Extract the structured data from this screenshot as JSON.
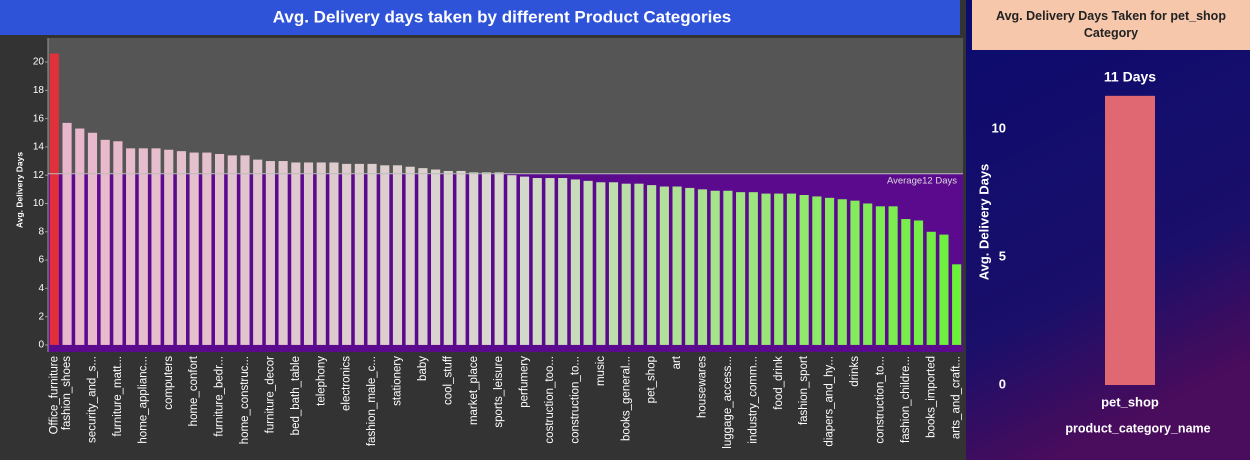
{
  "chart_data": [
    {
      "type": "bar",
      "title": "Avg. Delivery days taken by different Product Categories",
      "ylabel": "Avg. Delivery Days",
      "categories": [
        "Office_furniture",
        "fashion_shoes",
        null,
        "security_and_s...",
        null,
        "furniture_matt...",
        null,
        "home_applianc...",
        null,
        "computers",
        null,
        "home_confort",
        null,
        "furniture_bedr...",
        null,
        "home_construc...",
        null,
        "furniture_decor",
        null,
        "bed_bath_table",
        null,
        "telephony",
        null,
        "electronics",
        null,
        "fashion_male_c...",
        null,
        "stationery",
        null,
        "baby",
        null,
        "cool_stuff",
        null,
        "market_place",
        null,
        "sports_leisure",
        null,
        "perfumery",
        null,
        "costruction_too...",
        null,
        "construction_to...",
        null,
        "music",
        null,
        "books_general...",
        null,
        "pet_shop",
        null,
        "art",
        null,
        "housewares",
        null,
        "luggage_access...",
        null,
        "industry_comm...",
        null,
        "food_drink",
        null,
        "fashion_sport",
        null,
        "diapers_and_hy...",
        null,
        "drinks",
        null,
        "construction_to...",
        null,
        "fashion_childre...",
        null,
        "books_imported",
        null,
        "arts_and_craft..."
      ],
      "values": [
        20.6,
        15.7,
        15.3,
        15.0,
        14.5,
        14.4,
        13.9,
        13.9,
        13.9,
        13.8,
        13.7,
        13.6,
        13.6,
        13.5,
        13.4,
        13.4,
        13.1,
        13.0,
        13.0,
        12.9,
        12.9,
        12.9,
        12.9,
        12.8,
        12.8,
        12.8,
        12.7,
        12.7,
        12.6,
        12.5,
        12.4,
        12.3,
        12.3,
        12.2,
        12.2,
        12.2,
        12.0,
        11.9,
        11.8,
        11.8,
        11.8,
        11.7,
        11.6,
        11.5,
        11.5,
        11.4,
        11.4,
        11.3,
        11.2,
        11.2,
        11.1,
        11.0,
        10.9,
        10.9,
        10.8,
        10.8,
        10.7,
        10.7,
        10.7,
        10.6,
        10.5,
        10.4,
        10.3,
        10.2,
        10.0,
        9.8,
        9.8,
        8.9,
        8.8,
        8.0,
        7.8,
        5.7
      ],
      "ylim": [
        -0.5,
        21.7
      ],
      "yticks": [
        0,
        2,
        4,
        6,
        8,
        10,
        12,
        14,
        16,
        18,
        20
      ],
      "reference_line": {
        "value": 12.1,
        "label": "Average12 Days"
      },
      "highlight_color": "#e0303c",
      "gradient": [
        "#eab6cc",
        "#d8d8d0",
        "#6cf03a"
      ],
      "above_color": "#555555",
      "below_color": "#5b0a8e"
    },
    {
      "type": "bar",
      "title": "Avg. Delivery Days Taken for pet_shop Category",
      "ylabel": "Avg. Delivery Days",
      "xlabel": "product_category_name",
      "categories": [
        "pet_shop"
      ],
      "values": [
        11.3
      ],
      "value_labels": [
        "11 Days"
      ],
      "ylim": [
        0,
        12.7
      ],
      "yticks": [
        0,
        5,
        10
      ],
      "color": "#e06872"
    }
  ]
}
